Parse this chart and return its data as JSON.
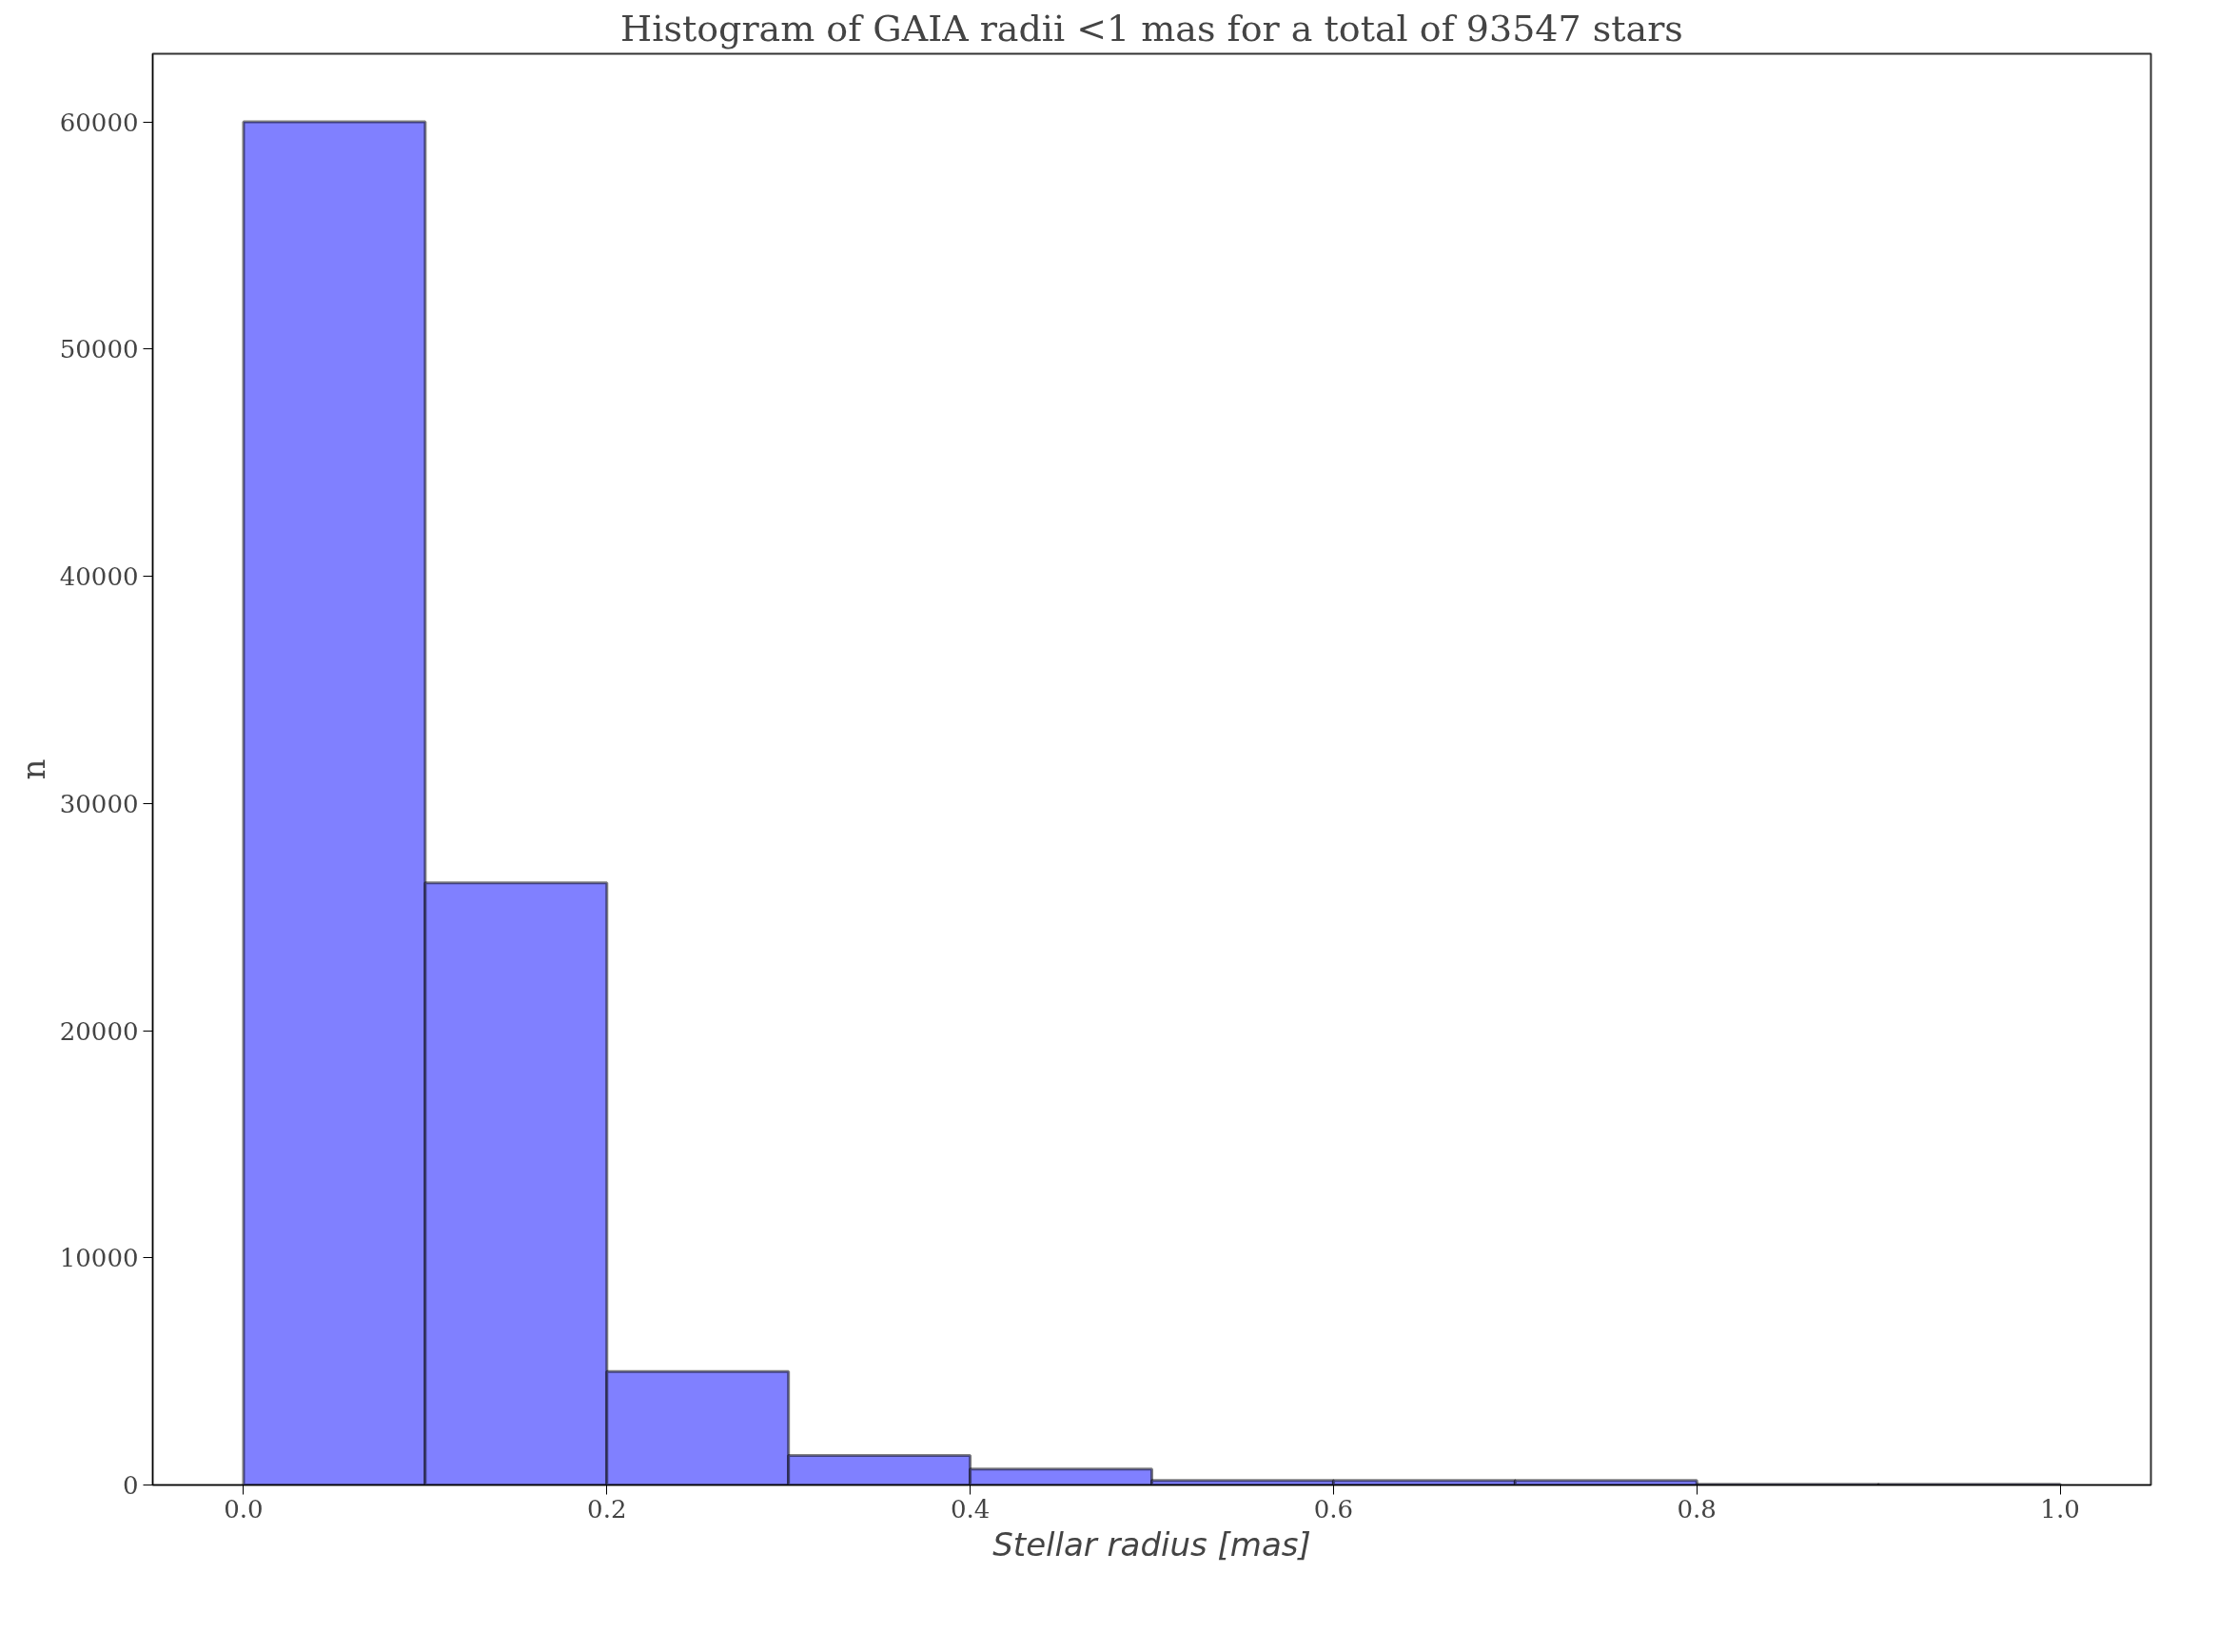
{
  "chart_data": {
    "type": "histogram",
    "title": "Histogram of GAIA radii <1 mas for a total of 93547 stars",
    "xlabel": "Stellar radius [mas]",
    "ylabel": "n",
    "bins": [
      0.0,
      0.1,
      0.2,
      0.3,
      0.4,
      0.5,
      0.6,
      0.7,
      0.8,
      0.9,
      1.0
    ],
    "values": [
      60000,
      26500,
      5000,
      1300,
      700,
      200,
      200,
      200,
      30,
      30
    ],
    "color": "#8080ff",
    "xlim": [
      -0.05,
      1.05
    ],
    "ylim": [
      0,
      63000
    ],
    "xticks": [
      {
        "value": 0,
        "label": "0.0"
      },
      0.2,
      0.4,
      0.6,
      0.8,
      {
        "value": 1,
        "label": "1.0"
      }
    ],
    "yticks": [
      0,
      10000,
      20000,
      30000,
      40000,
      50000,
      60000
    ],
    "grid": false
  }
}
